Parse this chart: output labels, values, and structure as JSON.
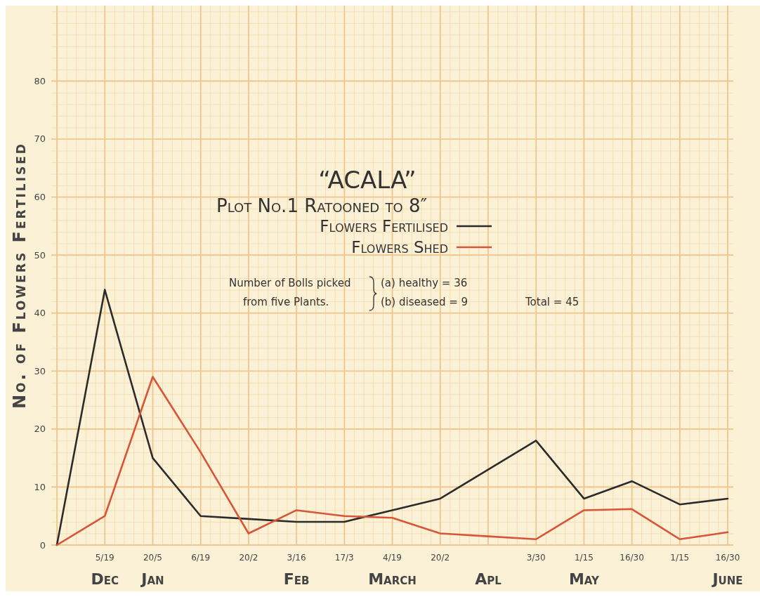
{
  "chart_data": {
    "type": "line",
    "title": "“ACALA”",
    "subtitle": "Plot No.1 Ratooned to 8″",
    "ylabel": "No. of Flowers Fertilised",
    "categories": [
      null,
      "5/19",
      "20/5",
      "6/19",
      "20/2",
      "3/16",
      "17/3",
      "4/19",
      "20/2",
      null,
      "3/30",
      "1/15",
      "16/30",
      "1/15",
      "16/30"
    ],
    "series": [
      {
        "name": "Flowers Fertilised",
        "color": "#2b2b2b",
        "values": [
          0,
          44,
          15,
          5,
          4.5,
          4,
          4,
          6,
          8,
          13,
          18,
          8,
          11,
          7,
          8
        ]
      },
      {
        "name": "Flowers Shed",
        "color": "#d9553a",
        "values": [
          0,
          5,
          29,
          16,
          2,
          6,
          5,
          4.7,
          2,
          1.5,
          1,
          6,
          6.2,
          1,
          2.2
        ]
      }
    ],
    "ylim": [
      0,
      93
    ],
    "yticks": [
      0,
      10,
      20,
      30,
      40,
      50,
      60,
      70,
      80
    ],
    "grid": true,
    "legend": "top",
    "line_style": "solid",
    "marker": "none",
    "annotations": [
      "Number of Bolls picked",
      "from five Plants.",
      "(a) healthy = 36",
      "(b) diseased = 9",
      "Total = 45",
      "Dec",
      "Jan",
      "Feb",
      "March",
      "Apl",
      "May",
      "June"
    ]
  }
}
